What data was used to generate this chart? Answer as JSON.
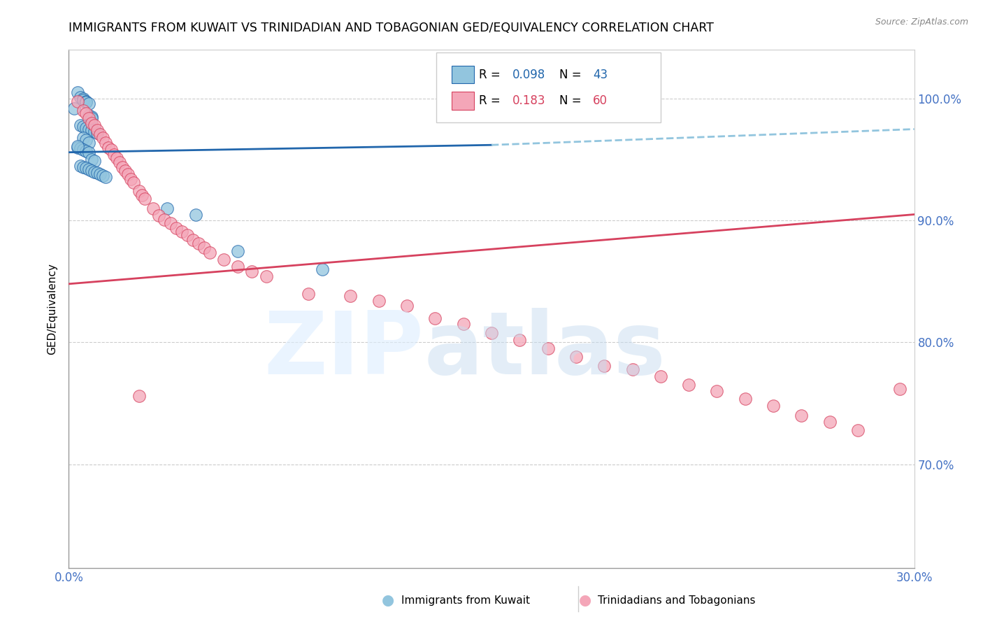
{
  "title": "IMMIGRANTS FROM KUWAIT VS TRINIDADIAN AND TOBAGONIAN GED/EQUIVALENCY CORRELATION CHART",
  "source": "Source: ZipAtlas.com",
  "ylabel": "GED/Equivalency",
  "ytick_labels": [
    "100.0%",
    "90.0%",
    "80.0%",
    "70.0%"
  ],
  "ytick_values": [
    1.0,
    0.9,
    0.8,
    0.7
  ],
  "xmin": 0.0,
  "xmax": 0.3,
  "ymin": 0.615,
  "ymax": 1.04,
  "legend_blue_r": "0.098",
  "legend_blue_n": "43",
  "legend_pink_r": "0.183",
  "legend_pink_n": "60",
  "blue_color": "#92c5de",
  "pink_color": "#f4a6b8",
  "blue_line_color": "#2166ac",
  "pink_line_color": "#d6415e",
  "blue_dash_color": "#92c5de",
  "title_fontsize": 12.5,
  "axis_color": "#4472c4",
  "blue_scatter_x": [
    0.003,
    0.004,
    0.005,
    0.005,
    0.006,
    0.006,
    0.007,
    0.007,
    0.008,
    0.008,
    0.004,
    0.005,
    0.006,
    0.007,
    0.008,
    0.009,
    0.01,
    0.005,
    0.006,
    0.007,
    0.003,
    0.004,
    0.005,
    0.006,
    0.007,
    0.008,
    0.009,
    0.004,
    0.005,
    0.006,
    0.007,
    0.008,
    0.009,
    0.01,
    0.011,
    0.012,
    0.013,
    0.035,
    0.045,
    0.06,
    0.09,
    0.002,
    0.003
  ],
  "blue_scatter_y": [
    1.005,
    1.001,
    1.0,
    0.999,
    0.998,
    0.997,
    0.996,
    0.986,
    0.985,
    0.984,
    0.978,
    0.977,
    0.976,
    0.975,
    0.974,
    0.973,
    0.972,
    0.968,
    0.966,
    0.964,
    0.96,
    0.959,
    0.958,
    0.957,
    0.956,
    0.95,
    0.949,
    0.945,
    0.944,
    0.943,
    0.942,
    0.941,
    0.94,
    0.939,
    0.938,
    0.937,
    0.936,
    0.91,
    0.905,
    0.875,
    0.86,
    0.992,
    0.961
  ],
  "pink_scatter_x": [
    0.003,
    0.005,
    0.006,
    0.007,
    0.008,
    0.009,
    0.01,
    0.011,
    0.012,
    0.013,
    0.014,
    0.015,
    0.016,
    0.017,
    0.018,
    0.019,
    0.02,
    0.021,
    0.022,
    0.023,
    0.025,
    0.026,
    0.027,
    0.03,
    0.032,
    0.034,
    0.036,
    0.038,
    0.04,
    0.042,
    0.044,
    0.046,
    0.048,
    0.05,
    0.055,
    0.06,
    0.065,
    0.07,
    0.085,
    0.1,
    0.11,
    0.12,
    0.13,
    0.14,
    0.15,
    0.16,
    0.17,
    0.18,
    0.19,
    0.2,
    0.21,
    0.22,
    0.23,
    0.24,
    0.25,
    0.26,
    0.27,
    0.28,
    0.295,
    0.025
  ],
  "pink_scatter_y": [
    0.998,
    0.99,
    0.988,
    0.984,
    0.98,
    0.978,
    0.974,
    0.971,
    0.968,
    0.964,
    0.96,
    0.958,
    0.954,
    0.951,
    0.948,
    0.944,
    0.941,
    0.938,
    0.934,
    0.931,
    0.924,
    0.921,
    0.918,
    0.91,
    0.904,
    0.901,
    0.898,
    0.894,
    0.891,
    0.888,
    0.884,
    0.881,
    0.878,
    0.874,
    0.868,
    0.862,
    0.858,
    0.854,
    0.84,
    0.838,
    0.834,
    0.83,
    0.82,
    0.815,
    0.808,
    0.802,
    0.795,
    0.788,
    0.781,
    0.778,
    0.772,
    0.765,
    0.76,
    0.754,
    0.748,
    0.74,
    0.735,
    0.728,
    0.762,
    0.756
  ],
  "blue_line_solid_x0": 0.0,
  "blue_line_solid_x1": 0.15,
  "blue_line_dash_x0": 0.15,
  "blue_line_dash_x1": 0.3,
  "blue_line_y_at_0": 0.956,
  "blue_line_y_at_015": 0.962,
  "blue_line_y_at_030": 0.975,
  "pink_line_y_at_0": 0.848,
  "pink_line_y_at_030": 0.905
}
